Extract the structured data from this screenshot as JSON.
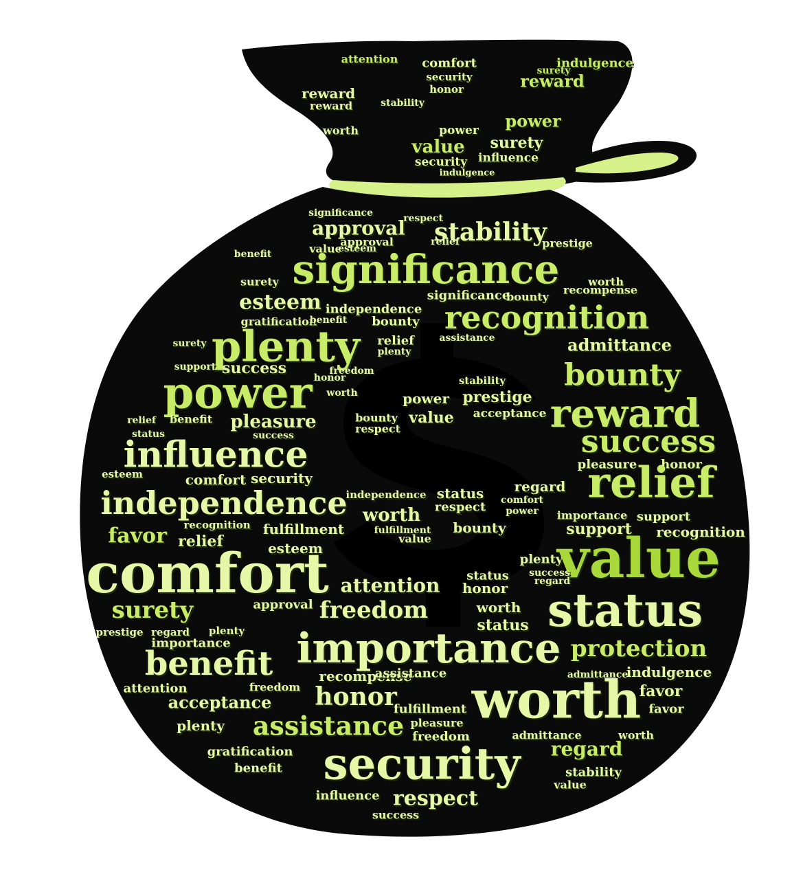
{
  "colors": {
    "background": "#ffffff",
    "bag": "#0a0a0a",
    "tie": "#d6f08a",
    "word_light": "#e6f7a8",
    "word_mid": "#c8ec68",
    "word_dark": "#a8d83a",
    "word_shadow": "#1b2a05"
  },
  "icon": "money-bag-dollar-icon",
  "words": [
    {
      "t": "attention",
      "s": 16,
      "c": "word_mid"
    },
    {
      "t": "comfort",
      "s": 18,
      "c": "word_light"
    },
    {
      "t": "indulgence",
      "s": 18,
      "c": "word_mid"
    },
    {
      "t": "surety",
      "s": 14,
      "c": "word_mid"
    },
    {
      "t": "reward",
      "s": 24,
      "c": "word_mid"
    },
    {
      "t": "reward",
      "s": 20,
      "c": "word_light"
    },
    {
      "t": "reward",
      "s": 16,
      "c": "word_light"
    },
    {
      "t": "security",
      "s": 15,
      "c": "word_light"
    },
    {
      "t": "honor",
      "s": 15,
      "c": "word_light"
    },
    {
      "t": "stability",
      "s": 14,
      "c": "word_light"
    },
    {
      "t": "power",
      "s": 24,
      "c": "word_mid"
    },
    {
      "t": "power",
      "s": 17,
      "c": "word_light"
    },
    {
      "t": "worth",
      "s": 16,
      "c": "word_light"
    },
    {
      "t": "surety",
      "s": 22,
      "c": "word_light"
    },
    {
      "t": "value",
      "s": 26,
      "c": "word_mid"
    },
    {
      "t": "influence",
      "s": 17,
      "c": "word_light"
    },
    {
      "t": "security",
      "s": 17,
      "c": "word_light"
    },
    {
      "t": "indulgence",
      "s": 13,
      "c": "word_light"
    },
    {
      "t": "significance",
      "s": 14,
      "c": "word_light"
    },
    {
      "t": "approval",
      "s": 28,
      "c": "word_light"
    },
    {
      "t": "respect",
      "s": 14,
      "c": "word_light"
    },
    {
      "t": "stability",
      "s": 36,
      "c": "word_light"
    },
    {
      "t": "approval",
      "s": 16,
      "c": "word_light"
    },
    {
      "t": "relief",
      "s": 14,
      "c": "word_light"
    },
    {
      "t": "prestige",
      "s": 16,
      "c": "word_light"
    },
    {
      "t": "value",
      "s": 16,
      "c": "word_light"
    },
    {
      "t": "esteem",
      "s": 14,
      "c": "word_light"
    },
    {
      "t": "significance",
      "s": 58,
      "c": "word_mid"
    },
    {
      "t": "benefit",
      "s": 14,
      "c": "word_light"
    },
    {
      "t": "surety",
      "s": 16,
      "c": "word_light"
    },
    {
      "t": "worth",
      "s": 16,
      "c": "word_light"
    },
    {
      "t": "recompense",
      "s": 16,
      "c": "word_light"
    },
    {
      "t": "significance",
      "s": 18,
      "c": "word_light"
    },
    {
      "t": "bounty",
      "s": 16,
      "c": "word_light"
    },
    {
      "t": "esteem",
      "s": 30,
      "c": "word_light"
    },
    {
      "t": "independence",
      "s": 18,
      "c": "word_light"
    },
    {
      "t": "recognition",
      "s": 46,
      "c": "word_mid"
    },
    {
      "t": "gratification",
      "s": 16,
      "c": "word_light"
    },
    {
      "t": "benefit",
      "s": 14,
      "c": "word_light"
    },
    {
      "t": "bounty",
      "s": 18,
      "c": "word_light"
    },
    {
      "t": "relief",
      "s": 18,
      "c": "word_light"
    },
    {
      "t": "plenty",
      "s": 62,
      "c": "word_mid"
    },
    {
      "t": "assistance",
      "s": 14,
      "c": "word_light"
    },
    {
      "t": "admittance",
      "s": 24,
      "c": "word_light"
    },
    {
      "t": "surety",
      "s": 14,
      "c": "word_light"
    },
    {
      "t": "plenty",
      "s": 14,
      "c": "word_light"
    },
    {
      "t": "success",
      "s": 22,
      "c": "word_light"
    },
    {
      "t": "support",
      "s": 14,
      "c": "word_light"
    },
    {
      "t": "freedom",
      "s": 14,
      "c": "word_light"
    },
    {
      "t": "bounty",
      "s": 44,
      "c": "word_mid"
    },
    {
      "t": "power",
      "s": 64,
      "c": "word_mid"
    },
    {
      "t": "honor",
      "s": 14,
      "c": "word_light"
    },
    {
      "t": "stability",
      "s": 15,
      "c": "word_light"
    },
    {
      "t": "prestige",
      "s": 22,
      "c": "word_light"
    },
    {
      "t": "power",
      "s": 20,
      "c": "word_light"
    },
    {
      "t": "worth",
      "s": 14,
      "c": "word_light"
    },
    {
      "t": "value",
      "s": 22,
      "c": "word_light"
    },
    {
      "t": "acceptance",
      "s": 17,
      "c": "word_light"
    },
    {
      "t": "reward",
      "s": 56,
      "c": "word_mid"
    },
    {
      "t": "pleasure",
      "s": 26,
      "c": "word_light"
    },
    {
      "t": "benefit",
      "s": 16,
      "c": "word_light"
    },
    {
      "t": "relief",
      "s": 14,
      "c": "word_light"
    },
    {
      "t": "bounty",
      "s": 16,
      "c": "word_light"
    },
    {
      "t": "respect",
      "s": 16,
      "c": "word_light"
    },
    {
      "t": "success",
      "s": 46,
      "c": "word_mid"
    },
    {
      "t": "influence",
      "s": 52,
      "c": "word_light"
    },
    {
      "t": "status",
      "s": 14,
      "c": "word_light"
    },
    {
      "t": "success",
      "s": 14,
      "c": "word_light"
    },
    {
      "t": "pleasure",
      "s": 18,
      "c": "word_light"
    },
    {
      "t": "honor",
      "s": 18,
      "c": "word_light"
    },
    {
      "t": "relief",
      "s": 62,
      "c": "word_mid"
    },
    {
      "t": "esteem",
      "s": 15,
      "c": "word_light"
    },
    {
      "t": "comfort",
      "s": 20,
      "c": "word_light"
    },
    {
      "t": "security",
      "s": 20,
      "c": "word_light"
    },
    {
      "t": "independence",
      "s": 46,
      "c": "word_light"
    },
    {
      "t": "independence",
      "s": 15,
      "c": "word_light"
    },
    {
      "t": "status",
      "s": 20,
      "c": "word_light"
    },
    {
      "t": "respect",
      "s": 18,
      "c": "word_light"
    },
    {
      "t": "regard",
      "s": 20,
      "c": "word_light"
    },
    {
      "t": "comfort",
      "s": 14,
      "c": "word_light"
    },
    {
      "t": "power",
      "s": 14,
      "c": "word_light"
    },
    {
      "t": "worth",
      "s": 26,
      "c": "word_light"
    },
    {
      "t": "importance",
      "s": 16,
      "c": "word_light"
    },
    {
      "t": "support",
      "s": 18,
      "c": "word_light"
    },
    {
      "t": "favor",
      "s": 30,
      "c": "word_mid"
    },
    {
      "t": "recognition",
      "s": 15,
      "c": "word_light"
    },
    {
      "t": "fulfillment",
      "s": 20,
      "c": "word_light"
    },
    {
      "t": "fulfillment",
      "s": 14,
      "c": "word_light"
    },
    {
      "t": "bounty",
      "s": 20,
      "c": "word_light"
    },
    {
      "t": "support",
      "s": 22,
      "c": "word_light"
    },
    {
      "t": "recognition",
      "s": 20,
      "c": "word_light"
    },
    {
      "t": "relief",
      "s": 22,
      "c": "word_light"
    },
    {
      "t": "esteem",
      "s": 20,
      "c": "word_light"
    },
    {
      "t": "value",
      "s": 16,
      "c": "word_light"
    },
    {
      "t": "plenty",
      "s": 18,
      "c": "word_light"
    },
    {
      "t": "value",
      "s": 80,
      "c": "word_dark"
    },
    {
      "t": "comfort",
      "s": 80,
      "c": "word_light"
    },
    {
      "t": "success",
      "s": 14,
      "c": "word_light"
    },
    {
      "t": "regard",
      "s": 14,
      "c": "word_light"
    },
    {
      "t": "status",
      "s": 18,
      "c": "word_light"
    },
    {
      "t": "attention",
      "s": 28,
      "c": "word_light"
    },
    {
      "t": "honor",
      "s": 20,
      "c": "word_light"
    },
    {
      "t": "surety",
      "s": 34,
      "c": "word_mid"
    },
    {
      "t": "approval",
      "s": 18,
      "c": "word_light"
    },
    {
      "t": "freedom",
      "s": 34,
      "c": "word_light"
    },
    {
      "t": "worth",
      "s": 20,
      "c": "word_light"
    },
    {
      "t": "status",
      "s": 66,
      "c": "word_light"
    },
    {
      "t": "prestige",
      "s": 15,
      "c": "word_light"
    },
    {
      "t": "regard",
      "s": 15,
      "c": "word_light"
    },
    {
      "t": "plenty",
      "s": 15,
      "c": "word_light"
    },
    {
      "t": "status",
      "s": 22,
      "c": "word_light"
    },
    {
      "t": "importance",
      "s": 60,
      "c": "word_light"
    },
    {
      "t": "protection",
      "s": 34,
      "c": "word_mid"
    },
    {
      "t": "importance",
      "s": 18,
      "c": "word_light"
    },
    {
      "t": "benefit",
      "s": 48,
      "c": "word_light"
    },
    {
      "t": "recompense",
      "s": 20,
      "c": "word_light"
    },
    {
      "t": "assistance",
      "s": 18,
      "c": "word_light"
    },
    {
      "t": "admittance",
      "s": 14,
      "c": "word_light"
    },
    {
      "t": "indulgence",
      "s": 20,
      "c": "word_light"
    },
    {
      "t": "worth",
      "s": 76,
      "c": "word_light"
    },
    {
      "t": "attention",
      "s": 18,
      "c": "word_light"
    },
    {
      "t": "freedom",
      "s": 16,
      "c": "word_light"
    },
    {
      "t": "honor",
      "s": 36,
      "c": "word_light"
    },
    {
      "t": "favor",
      "s": 22,
      "c": "word_light"
    },
    {
      "t": "acceptance",
      "s": 24,
      "c": "word_light"
    },
    {
      "t": "fulfillment",
      "s": 18,
      "c": "word_light"
    },
    {
      "t": "favor",
      "s": 18,
      "c": "word_light"
    },
    {
      "t": "plenty",
      "s": 20,
      "c": "word_light"
    },
    {
      "t": "assistance",
      "s": 38,
      "c": "word_mid"
    },
    {
      "t": "pleasure",
      "s": 16,
      "c": "word_light"
    },
    {
      "t": "admittance",
      "s": 16,
      "c": "word_light"
    },
    {
      "t": "worth",
      "s": 16,
      "c": "word_light"
    },
    {
      "t": "freedom",
      "s": 18,
      "c": "word_light"
    },
    {
      "t": "gratification",
      "s": 18,
      "c": "word_light"
    },
    {
      "t": "security",
      "s": 64,
      "c": "word_light"
    },
    {
      "t": "regard",
      "s": 28,
      "c": "word_mid"
    },
    {
      "t": "benefit",
      "s": 18,
      "c": "word_light"
    },
    {
      "t": "stability",
      "s": 18,
      "c": "word_light"
    },
    {
      "t": "influence",
      "s": 18,
      "c": "word_light"
    },
    {
      "t": "respect",
      "s": 30,
      "c": "word_light"
    },
    {
      "t": "value",
      "s": 16,
      "c": "word_light"
    },
    {
      "t": "success",
      "s": 16,
      "c": "word_light"
    }
  ]
}
